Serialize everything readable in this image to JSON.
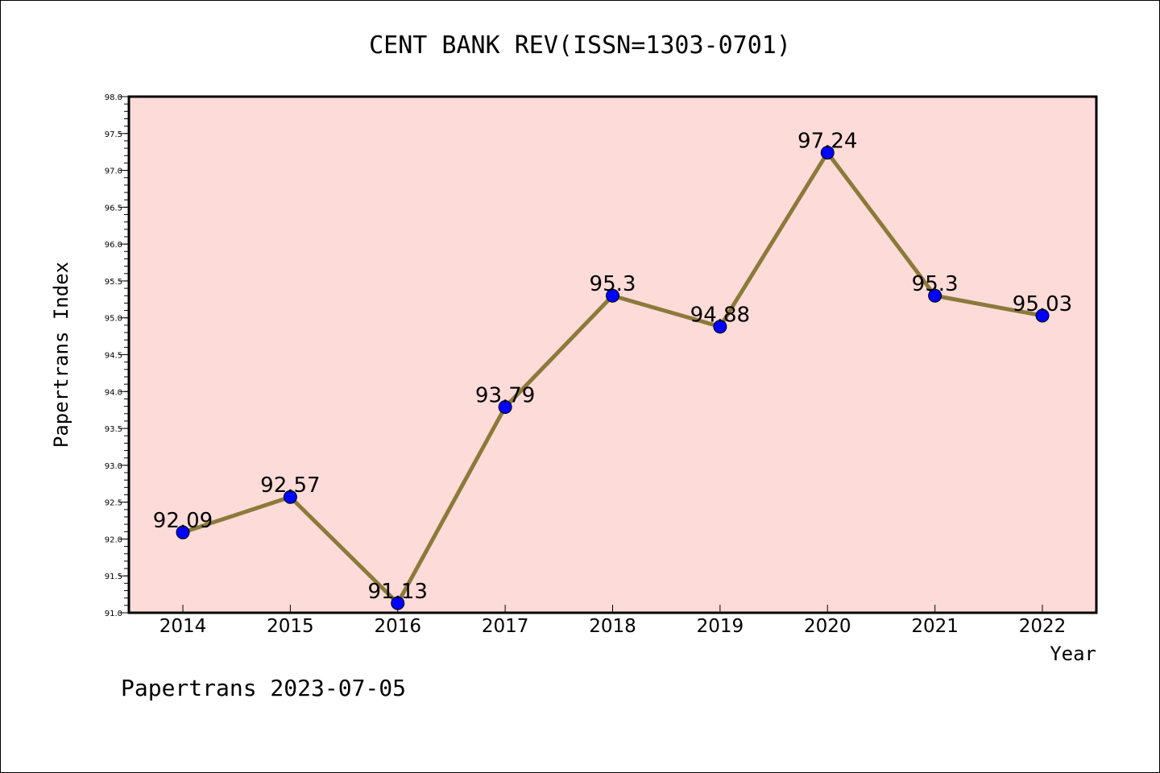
{
  "chart_data": {
    "type": "line",
    "title": "CENT BANK REV(ISSN=1303-0701)",
    "xlabel": "Year",
    "ylabel": "Papertrans Index",
    "categories": [
      "2014",
      "2015",
      "2016",
      "2017",
      "2018",
      "2019",
      "2020",
      "2021",
      "2022"
    ],
    "series": [
      {
        "values": [
          92.09,
          92.57,
          91.13,
          93.79,
          95.3,
          94.88,
          97.24,
          95.3,
          95.03
        ],
        "labels": [
          "92.09",
          "92.57",
          "91.13",
          "93.79",
          "95.3",
          "94.88",
          "97.24",
          "95.3",
          "95.03"
        ],
        "line_color": "#8b7a3a",
        "marker_color": "#0000ff"
      }
    ],
    "ylim": [
      91.0,
      98.0
    ],
    "yticks": [
      "91.0",
      "91.5",
      "92.0",
      "92.5",
      "93.0",
      "93.5",
      "94.0",
      "94.5",
      "95.0",
      "95.5",
      "96.0",
      "96.5",
      "97.0",
      "97.5",
      "98.0"
    ],
    "plot_background": "#fddbd8",
    "grid": false
  },
  "footer": "Papertrans 2023-07-05"
}
